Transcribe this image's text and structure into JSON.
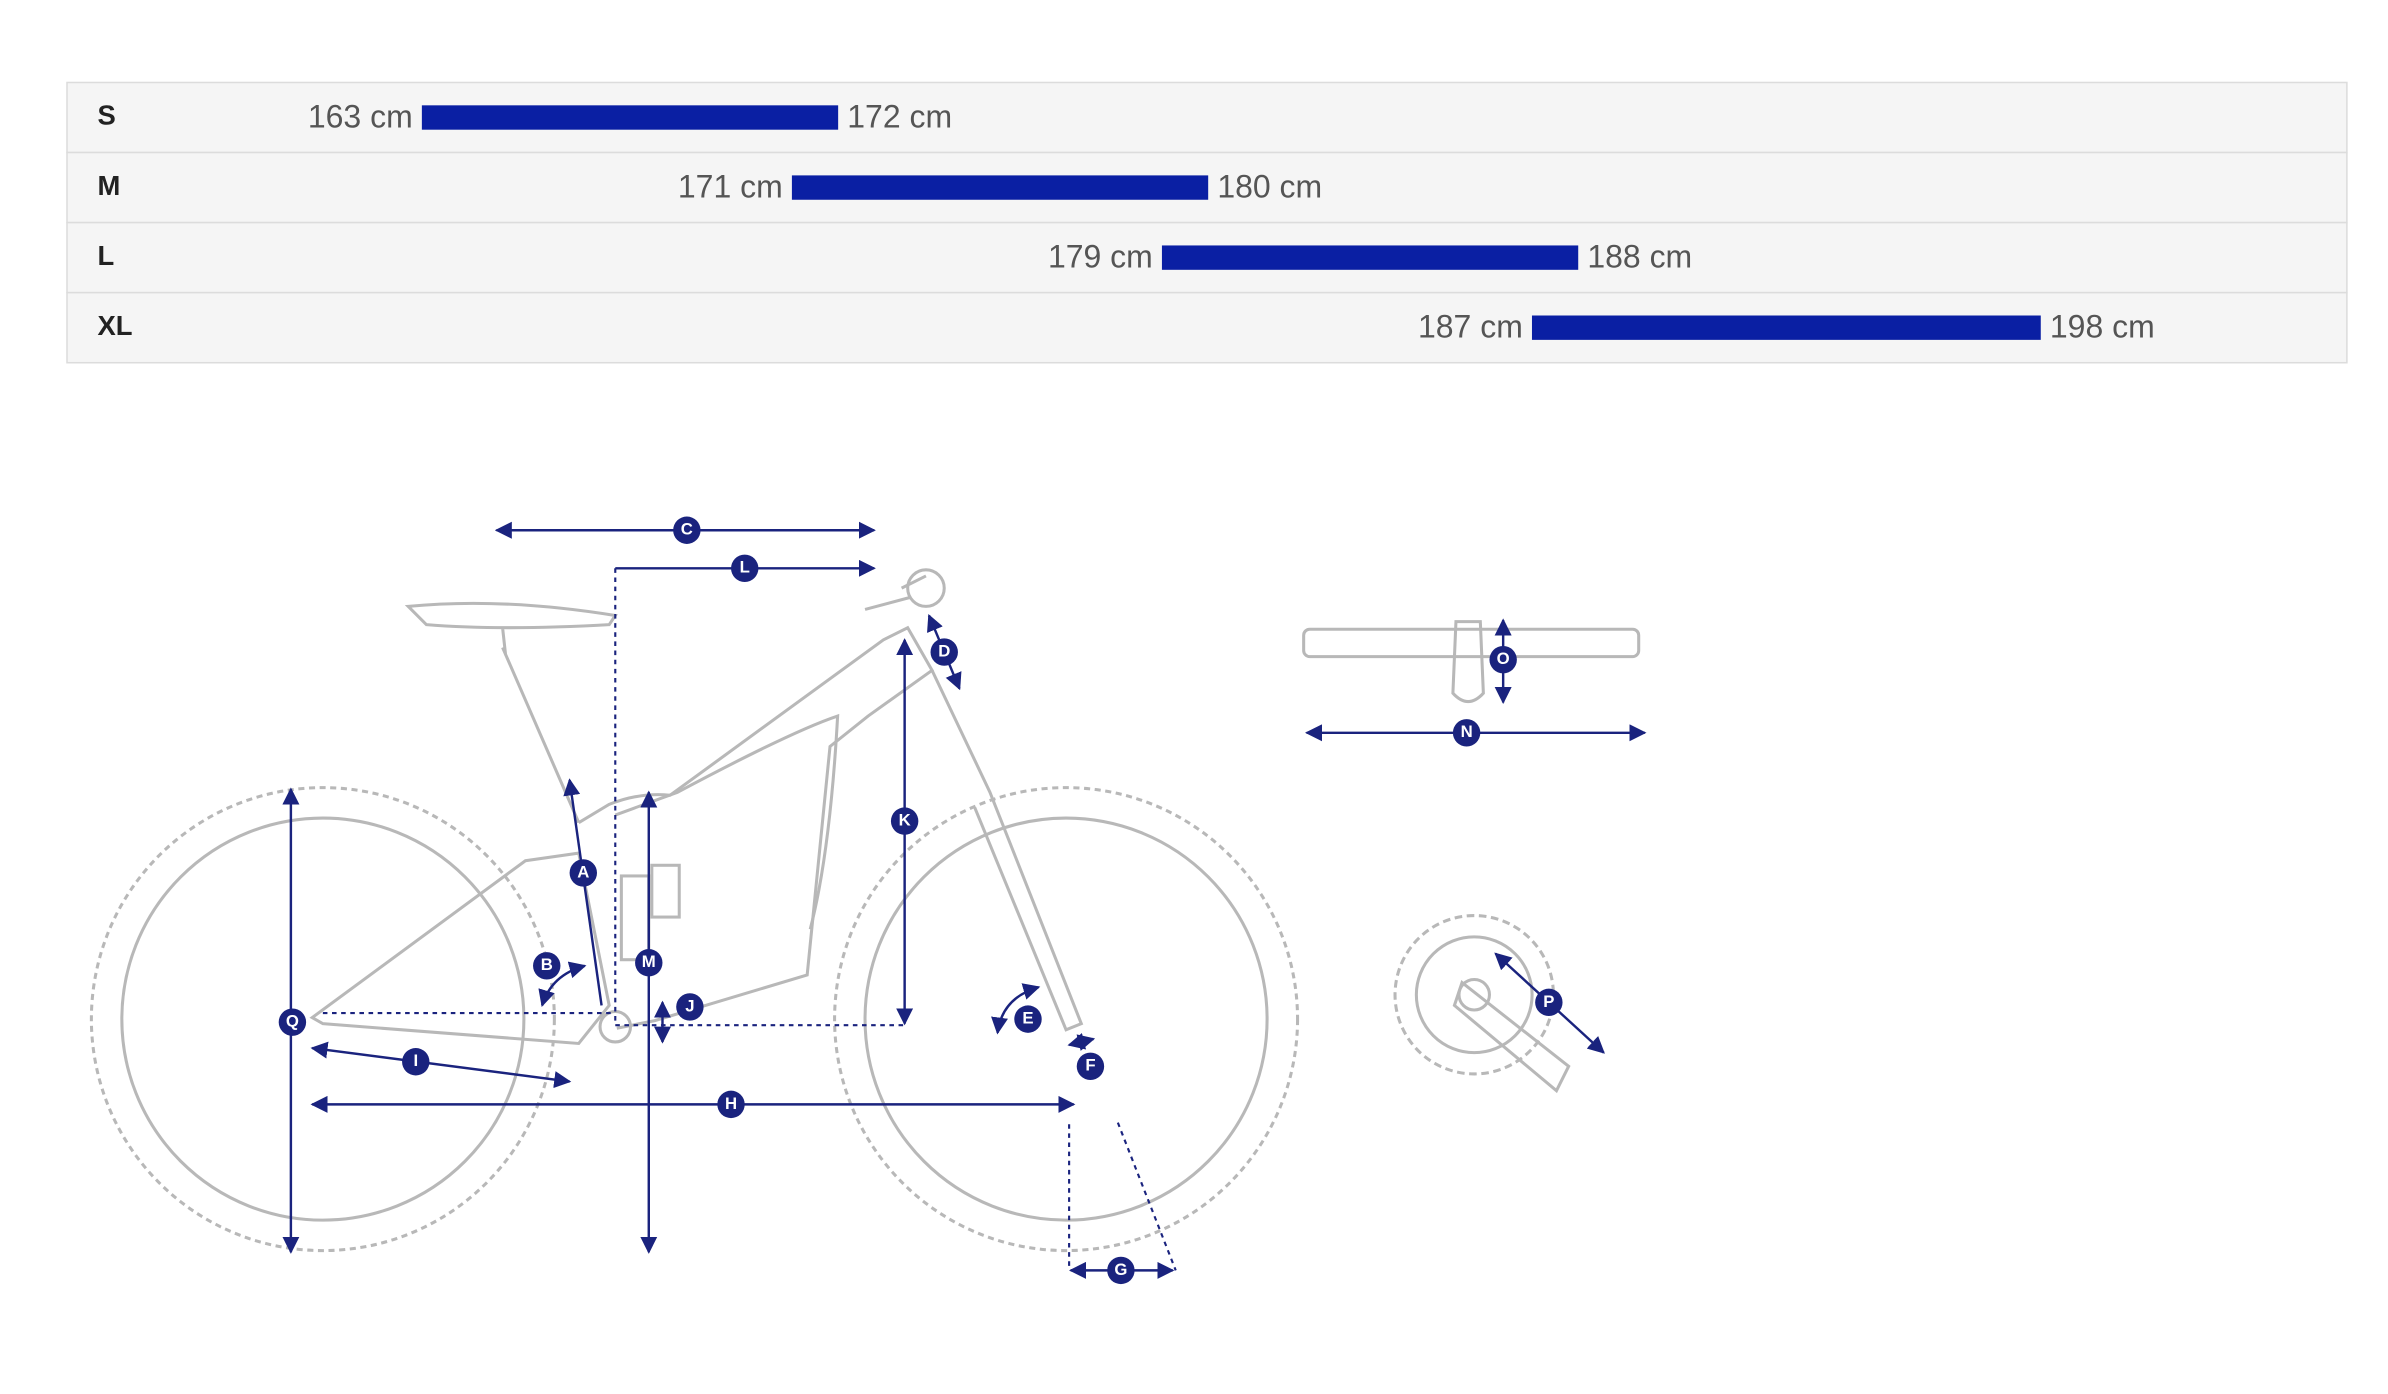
{
  "chart_data": {
    "type": "range-bar",
    "categories": [
      "S",
      "M",
      "L",
      "XL"
    ],
    "values": [
      [
        163,
        172
      ],
      [
        171,
        180
      ],
      [
        179,
        188
      ],
      [
        187,
        198
      ]
    ],
    "value_labels": [
      [
        "163 cm",
        "172 cm"
      ],
      [
        "171 cm",
        "180 cm"
      ],
      [
        "179 cm",
        "188 cm"
      ],
      [
        "187 cm",
        "198 cm"
      ]
    ],
    "color": "#0a1fa3"
  },
  "diagram": {
    "labels": [
      "C",
      "L",
      "D",
      "O",
      "N",
      "K",
      "A",
      "B",
      "M",
      "J",
      "Q",
      "E",
      "F",
      "I",
      "H",
      "P",
      "G"
    ]
  }
}
